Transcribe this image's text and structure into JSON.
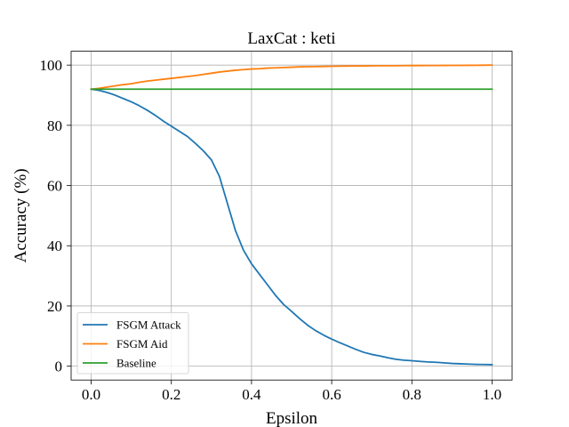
{
  "chart_data": {
    "type": "line",
    "title": "LaxCat : keti",
    "xlabel": "Epsilon",
    "ylabel": "Accuracy (%)",
    "xlim": [
      -0.05,
      1.05
    ],
    "ylim": [
      -4.6,
      104.6
    ],
    "xticks": [
      0.0,
      0.2,
      0.4,
      0.6,
      0.8,
      1.0
    ],
    "xtick_labels": [
      "0.0",
      "0.2",
      "0.4",
      "0.6",
      "0.8",
      "1.0"
    ],
    "yticks": [
      0,
      20,
      40,
      60,
      80,
      100
    ],
    "ytick_labels": [
      "0",
      "20",
      "40",
      "60",
      "80",
      "100"
    ],
    "grid": true,
    "legend_position": "lower-left",
    "series": [
      {
        "name": "FSGM Attack",
        "color": "#1f77b4",
        "x": [
          0.0,
          0.02,
          0.04,
          0.06,
          0.08,
          0.1,
          0.12,
          0.14,
          0.16,
          0.18,
          0.2,
          0.22,
          0.24,
          0.26,
          0.28,
          0.3,
          0.32,
          0.34,
          0.36,
          0.38,
          0.4,
          0.42,
          0.44,
          0.46,
          0.48,
          0.5,
          0.52,
          0.54,
          0.56,
          0.58,
          0.6,
          0.62,
          0.64,
          0.66,
          0.68,
          0.7,
          0.72,
          0.74,
          0.76,
          0.78,
          0.8,
          0.82,
          0.84,
          0.86,
          0.88,
          0.9,
          0.92,
          0.94,
          0.96,
          0.98,
          1.0
        ],
        "y": [
          92.0,
          91.6,
          90.9,
          90.0,
          88.9,
          87.8,
          86.5,
          85.0,
          83.3,
          81.4,
          79.7,
          78.0,
          76.3,
          74.0,
          71.5,
          68.5,
          63.0,
          54.0,
          45.0,
          38.5,
          34.0,
          30.5,
          27.0,
          23.5,
          20.5,
          18.2,
          15.8,
          13.6,
          11.8,
          10.3,
          9.0,
          7.8,
          6.7,
          5.6,
          4.6,
          3.9,
          3.4,
          2.8,
          2.3,
          2.0,
          1.8,
          1.6,
          1.4,
          1.3,
          1.1,
          0.9,
          0.8,
          0.7,
          0.6,
          0.55,
          0.5
        ]
      },
      {
        "name": "FSGM Aid",
        "color": "#ff7f0e",
        "x": [
          0.0,
          0.02,
          0.04,
          0.06,
          0.08,
          0.1,
          0.12,
          0.14,
          0.16,
          0.18,
          0.2,
          0.22,
          0.24,
          0.26,
          0.28,
          0.3,
          0.32,
          0.34,
          0.36,
          0.38,
          0.4,
          0.42,
          0.44,
          0.46,
          0.48,
          0.5,
          0.52,
          0.54,
          0.56,
          0.58,
          0.6,
          0.62,
          0.64,
          0.66,
          0.68,
          0.7,
          0.72,
          0.74,
          0.76,
          0.78,
          0.8,
          0.82,
          0.84,
          0.86,
          0.88,
          0.9,
          0.92,
          0.94,
          0.96,
          0.98,
          1.0
        ],
        "y": [
          92.0,
          92.3,
          92.7,
          93.1,
          93.5,
          93.8,
          94.3,
          94.7,
          95.0,
          95.3,
          95.6,
          95.9,
          96.2,
          96.5,
          96.9,
          97.3,
          97.7,
          98.0,
          98.3,
          98.5,
          98.7,
          98.8,
          99.0,
          99.1,
          99.2,
          99.3,
          99.4,
          99.45,
          99.5,
          99.55,
          99.6,
          99.65,
          99.7,
          99.72,
          99.74,
          99.76,
          99.78,
          99.8,
          99.8,
          99.82,
          99.84,
          99.85,
          99.86,
          99.87,
          99.88,
          99.9,
          99.9,
          99.92,
          99.94,
          99.96,
          100.0
        ]
      },
      {
        "name": "Baseline",
        "color": "#2ca02c",
        "x": [
          0.0,
          1.0
        ],
        "y": [
          92.0,
          92.0
        ]
      }
    ]
  }
}
